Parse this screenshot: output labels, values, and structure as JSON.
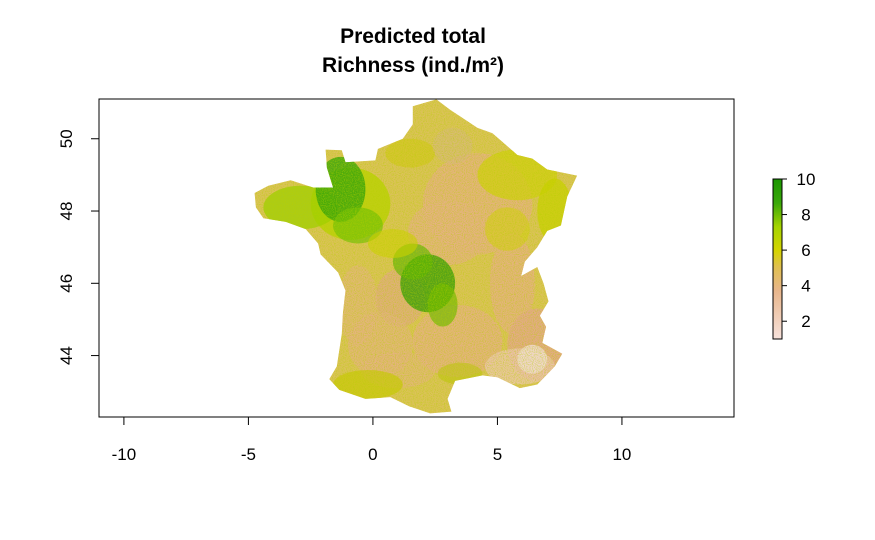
{
  "plot": {
    "title_line1": "Predicted total",
    "title_line2": "Richness (ind./m²)"
  },
  "map": {
    "region": "France",
    "value_range": [
      1,
      10
    ],
    "color_scale": [
      "#f7e2dc",
      "#e8b68c",
      "#e0c050",
      "#d6d400",
      "#a6d400",
      "#3aa80a",
      "#1a9600"
    ]
  },
  "x_axis": {
    "range": [
      -11,
      14.5
    ],
    "ticks": [
      {
        "value": -10,
        "label": "-10"
      },
      {
        "value": -5,
        "label": "-5"
      },
      {
        "value": 0,
        "label": "0"
      },
      {
        "value": 5,
        "label": "5"
      },
      {
        "value": 10,
        "label": "10"
      }
    ]
  },
  "y_axis": {
    "range": [
      42.3,
      51.1
    ],
    "ticks": [
      {
        "value": 44,
        "label": "44"
      },
      {
        "value": 46,
        "label": "46"
      },
      {
        "value": 48,
        "label": "48"
      },
      {
        "value": 50,
        "label": "50"
      }
    ]
  },
  "legend": {
    "range": [
      1,
      10
    ],
    "ticks": [
      {
        "value": 2,
        "label": "2"
      },
      {
        "value": 4,
        "label": "4"
      },
      {
        "value": 6,
        "label": "6"
      },
      {
        "value": 8,
        "label": "8"
      },
      {
        "value": 10,
        "label": "10"
      }
    ]
  }
}
